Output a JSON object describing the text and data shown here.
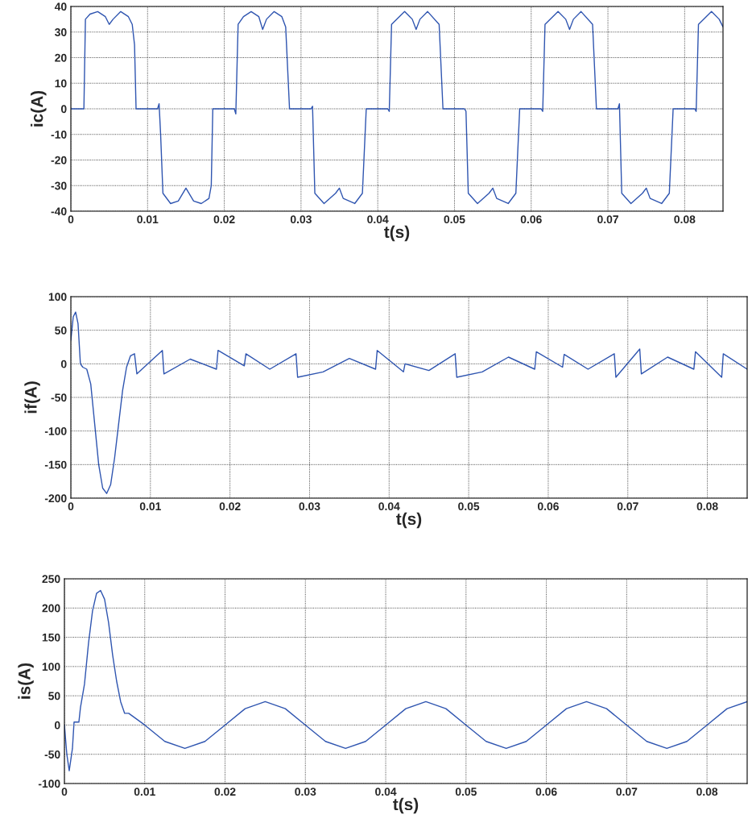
{
  "chart_data": [
    {
      "type": "line",
      "xlabel": "t(s)",
      "ylabel": "ic(A)",
      "xlim": [
        0,
        0.085
      ],
      "ylim": [
        -40,
        40
      ],
      "xticks": [
        0,
        0.01,
        0.02,
        0.03,
        0.04,
        0.05,
        0.06,
        0.07,
        0.08
      ],
      "yticks": [
        -40,
        -30,
        -20,
        -10,
        0,
        10,
        20,
        30,
        40
      ],
      "grid": true,
      "legend": false,
      "series": [
        {
          "color": "#2f55b0",
          "x": [
            0,
            0.0017,
            0.0019,
            0.0025,
            0.0035,
            0.0045,
            0.005,
            0.0055,
            0.0065,
            0.0075,
            0.008,
            0.0083,
            0.0085,
            0.0113,
            0.0115,
            0.0117,
            0.012,
            0.013,
            0.014,
            0.015,
            0.016,
            0.017,
            0.018,
            0.0183,
            0.0185,
            0.0213,
            0.0215,
            0.0218,
            0.0225,
            0.0235,
            0.0245,
            0.025,
            0.0255,
            0.0265,
            0.0275,
            0.028,
            0.0285,
            0.0313,
            0.0315,
            0.0318,
            0.033,
            0.0345,
            0.035,
            0.0355,
            0.037,
            0.038,
            0.0385,
            0.0413,
            0.0415,
            0.0418,
            0.0435,
            0.0445,
            0.045,
            0.0455,
            0.0465,
            0.048,
            0.0485,
            0.0513,
            0.0515,
            0.0518,
            0.053,
            0.0545,
            0.055,
            0.0555,
            0.057,
            0.058,
            0.0585,
            0.0613,
            0.0615,
            0.0618,
            0.0635,
            0.0645,
            0.065,
            0.0655,
            0.0665,
            0.068,
            0.0685,
            0.0713,
            0.0715,
            0.0718,
            0.073,
            0.0745,
            0.075,
            0.0755,
            0.077,
            0.078,
            0.0785,
            0.0813,
            0.0815,
            0.0818,
            0.0835,
            0.0845,
            0.085
          ],
          "values": [
            0,
            0,
            35,
            37,
            38,
            36,
            33,
            35,
            38,
            36,
            33,
            25,
            0,
            0,
            2,
            -10,
            -33,
            -37,
            -36,
            -31,
            -36,
            -37,
            -35,
            -30,
            0,
            0,
            -2,
            33,
            36,
            38,
            36,
            31,
            35,
            38,
            36,
            32,
            0,
            0,
            1,
            -33,
            -37,
            -33,
            -31,
            -35,
            -37,
            -33,
            0,
            0,
            -1,
            33,
            38,
            35,
            31,
            35,
            38,
            33,
            0,
            0,
            -1,
            -33,
            -37,
            -33,
            -31,
            -35,
            -37,
            -33,
            0,
            0,
            -1,
            33,
            38,
            35,
            31,
            35,
            38,
            33,
            0,
            0,
            2,
            -33,
            -37,
            -33,
            -31,
            -35,
            -37,
            -33,
            0,
            0,
            -1,
            33,
            38,
            35,
            32
          ]
        }
      ]
    },
    {
      "type": "line",
      "xlabel": "t(s)",
      "ylabel": "if(A)",
      "xlim": [
        0,
        0.085
      ],
      "ylim": [
        -200,
        100
      ],
      "xticks": [
        0,
        0.01,
        0.02,
        0.03,
        0.04,
        0.05,
        0.06,
        0.07,
        0.08
      ],
      "yticks": [
        -200,
        -150,
        -100,
        -50,
        0,
        50,
        100
      ],
      "grid": true,
      "legend": false,
      "series": [
        {
          "color": "#2f55b0",
          "x": [
            0,
            0.0003,
            0.0006,
            0.0009,
            0.0012,
            0.0015,
            0.002,
            0.0025,
            0.003,
            0.0035,
            0.004,
            0.0045,
            0.005,
            0.0055,
            0.006,
            0.0065,
            0.007,
            0.0075,
            0.008,
            0.0083,
            0.0115,
            0.0117,
            0.015,
            0.0183,
            0.0185,
            0.0218,
            0.022,
            0.025,
            0.0283,
            0.0285,
            0.0317,
            0.035,
            0.0383,
            0.0385,
            0.0418,
            0.042,
            0.045,
            0.0483,
            0.0485,
            0.0517,
            0.055,
            0.0583,
            0.0585,
            0.0618,
            0.062,
            0.065,
            0.0683,
            0.0685,
            0.0715,
            0.0717,
            0.075,
            0.0783,
            0.0785,
            0.0818,
            0.082,
            0.085
          ],
          "values": [
            35,
            70,
            77,
            60,
            0,
            -5,
            -8,
            -30,
            -90,
            -150,
            -185,
            -193,
            -180,
            -140,
            -90,
            -40,
            -5,
            12,
            15,
            -15,
            20,
            -15,
            7,
            -8,
            20,
            -3,
            15,
            -8,
            15,
            -20,
            -12,
            8,
            -8,
            20,
            -12,
            0,
            -10,
            15,
            -20,
            -12,
            10,
            -8,
            18,
            -5,
            14,
            -8,
            15,
            -20,
            22,
            -15,
            10,
            -8,
            18,
            -20,
            15,
            -8
          ]
        }
      ]
    },
    {
      "type": "line",
      "xlabel": "t(s)",
      "ylabel": "is(A)",
      "xlim": [
        0,
        0.085
      ],
      "ylim": [
        -100,
        250
      ],
      "xticks": [
        0,
        0.01,
        0.02,
        0.03,
        0.04,
        0.05,
        0.06,
        0.07,
        0.08
      ],
      "yticks": [
        -100,
        -50,
        0,
        50,
        100,
        150,
        200,
        250
      ],
      "grid": true,
      "legend": false,
      "series": [
        {
          "color": "#2f55b0",
          "x": [
            0,
            0.0003,
            0.0006,
            0.001,
            0.0012,
            0.0018,
            0.002,
            0.0025,
            0.003,
            0.0035,
            0.004,
            0.0045,
            0.005,
            0.0055,
            0.006,
            0.0065,
            0.007,
            0.0075,
            0.008,
            0.01,
            0.0125,
            0.015,
            0.0175,
            0.02,
            0.0225,
            0.025,
            0.0275,
            0.03,
            0.0325,
            0.035,
            0.0375,
            0.04,
            0.0425,
            0.045,
            0.0475,
            0.05,
            0.0525,
            0.055,
            0.0575,
            0.06,
            0.0625,
            0.065,
            0.0675,
            0.07,
            0.0725,
            0.075,
            0.0775,
            0.08,
            0.0825,
            0.085
          ],
          "values": [
            0,
            -50,
            -78,
            -40,
            5,
            5,
            30,
            70,
            140,
            195,
            225,
            230,
            215,
            175,
            120,
            75,
            40,
            20,
            20,
            0,
            -28,
            -40,
            -28,
            0,
            28,
            40,
            28,
            0,
            -28,
            -40,
            -28,
            0,
            28,
            40,
            28,
            0,
            -28,
            -40,
            -28,
            0,
            28,
            40,
            28,
            0,
            -28,
            -40,
            -28,
            0,
            28,
            40
          ]
        }
      ]
    }
  ]
}
